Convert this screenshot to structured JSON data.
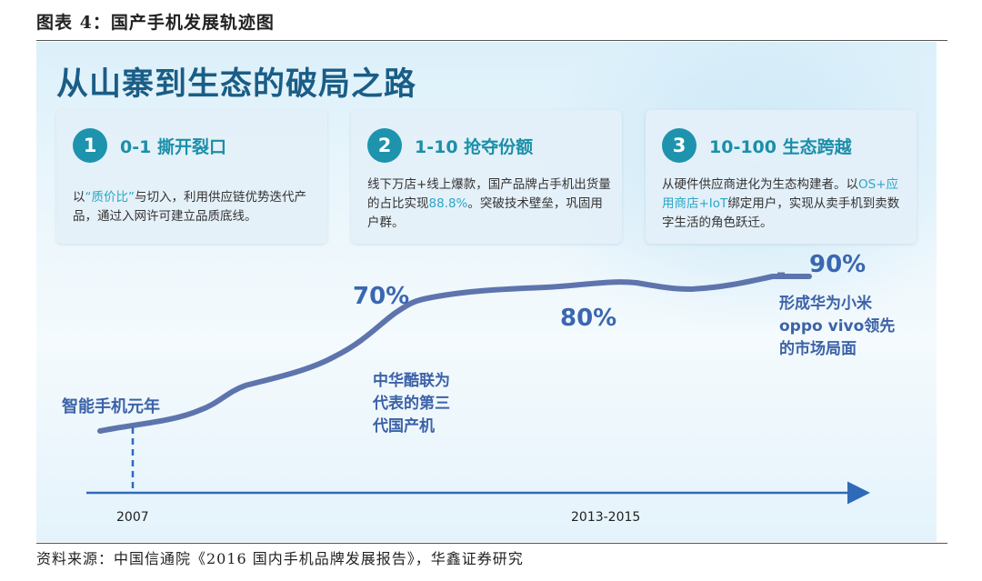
{
  "figure_title": "图表 4：国产手机发展轨迹图",
  "headline": "从山寨到生态的破局之路",
  "cards": [
    {
      "number": "1",
      "title": "0-1 撕开裂口",
      "body_pre": "以",
      "body_hl": "“质价比”",
      "body_post": "与切入，利用供应链优势迭代产品，通过入网许可建立品质底线。"
    },
    {
      "number": "2",
      "title": "1-10 抢夺份额",
      "body_pre": "线下万店+线上爆款，国产品牌占手机出货量的占比实现",
      "body_hl": "88.8%",
      "body_post": "。突破技术壁垒，巩固用户群。"
    },
    {
      "number": "3",
      "title": "10-100 生态跨越",
      "body_pre": "从硬件供应商进化为生态构建者。以",
      "body_hl": "OS+应用商店+IoT",
      "body_post": "绑定用户，实现从卖手机到卖数字生活的角色跃迁。"
    }
  ],
  "chart_data": {
    "type": "line",
    "series": [
      {
        "name": "",
        "y": [
          null,
          70,
          80,
          90
        ]
      }
    ],
    "x_ticks": [
      "2007",
      "2013-2015"
    ],
    "value_labels": [
      "70%",
      "80%",
      "90%"
    ],
    "annotations": [
      "智能手机元年",
      "中华酷联为\n代表的第三\n代国产机",
      "形成华为小米\noppo vivo领先\n的市场局面"
    ],
    "colors": {
      "line": "#5d74ad",
      "axis": "#2f6ab8",
      "text": "#3a67b0"
    }
  },
  "source": "资料来源：中国信通院《2016 国内手机品牌发展报告》，华鑫证券研究"
}
